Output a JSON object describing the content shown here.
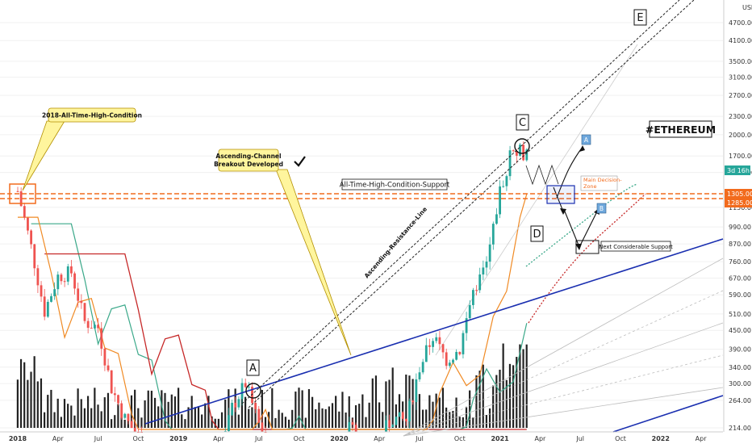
{
  "colors": {
    "accent_orange": "#f26b1d",
    "channel_blue": "#1a2fb0",
    "ema_red": "#c62828",
    "ema_green": "#3aa889",
    "ema_orange": "#f08a24",
    "candle_up": "#26a69a",
    "candle_down": "#ef5350",
    "volume": "#222222",
    "callout_fill": "#fff59d",
    "callout_border": "#b38f00",
    "badge_fill": "#6fa8dc"
  },
  "price_axis": {
    "unit": "USD",
    "ticks": [
      214,
      264,
      300,
      340,
      390,
      450,
      510,
      590,
      670,
      760,
      870,
      990,
      1150,
      1500,
      1700,
      2000,
      2300,
      2700,
      3100,
      3500,
      4100,
      4700
    ],
    "current_price_label": "3d 16h",
    "level_labels": [
      "1305.00",
      "1285.00"
    ]
  },
  "time_axis": {
    "labels": [
      {
        "text": "2018",
        "year": true
      },
      {
        "text": "Apr",
        "year": false
      },
      {
        "text": "Jul",
        "year": false
      },
      {
        "text": "Oct",
        "year": false
      },
      {
        "text": "2019",
        "year": true
      },
      {
        "text": "Apr",
        "year": false
      },
      {
        "text": "Jul",
        "year": false
      },
      {
        "text": "Oct",
        "year": false
      },
      {
        "text": "2020",
        "year": true
      },
      {
        "text": "Apr",
        "year": false
      },
      {
        "text": "Jul",
        "year": false
      },
      {
        "text": "Oct",
        "year": false
      },
      {
        "text": "2021",
        "year": true
      },
      {
        "text": "Apr",
        "year": false
      },
      {
        "text": "Jul",
        "year": false
      },
      {
        "text": "Oct",
        "year": false
      },
      {
        "text": "2022",
        "year": true
      },
      {
        "text": "Apr",
        "year": false
      }
    ]
  },
  "chart_data": {
    "type": "candlestick",
    "ylim": [
      214,
      5000
    ],
    "y_scale": "log",
    "price_path": [
      {
        "x": "2018-01",
        "y": 1300
      },
      {
        "x": "2018-02",
        "y": 850
      },
      {
        "x": "2018-03",
        "y": 520
      },
      {
        "x": "2018-04",
        "y": 680
      },
      {
        "x": "2018-05",
        "y": 700
      },
      {
        "x": "2018-06",
        "y": 480
      },
      {
        "x": "2018-07",
        "y": 460
      },
      {
        "x": "2018-08",
        "y": 290
      },
      {
        "x": "2018-09",
        "y": 230
      },
      {
        "x": "2018-10",
        "y": 200
      },
      {
        "x": "2018-11",
        "y": 120
      },
      {
        "x": "2018-12",
        "y": 130
      },
      {
        "x": "2019-01",
        "y": 110
      },
      {
        "x": "2019-02",
        "y": 135
      },
      {
        "x": "2019-03",
        "y": 140
      },
      {
        "x": "2019-04",
        "y": 165
      },
      {
        "x": "2019-05",
        "y": 250
      },
      {
        "x": "2019-06",
        "y": 300
      },
      {
        "x": "2019-07",
        "y": 220
      },
      {
        "x": "2019-08",
        "y": 180
      },
      {
        "x": "2019-09",
        "y": 175
      },
      {
        "x": "2019-10",
        "y": 180
      },
      {
        "x": "2019-11",
        "y": 150
      },
      {
        "x": "2019-12",
        "y": 130
      },
      {
        "x": "2020-01",
        "y": 180
      },
      {
        "x": "2020-02",
        "y": 230
      },
      {
        "x": "2020-03",
        "y": 130
      },
      {
        "x": "2020-04",
        "y": 200
      },
      {
        "x": "2020-05",
        "y": 230
      },
      {
        "x": "2020-06",
        "y": 225
      },
      {
        "x": "2020-07",
        "y": 340
      },
      {
        "x": "2020-08",
        "y": 430
      },
      {
        "x": "2020-09",
        "y": 360
      },
      {
        "x": "2020-10",
        "y": 390
      },
      {
        "x": "2020-11",
        "y": 610
      },
      {
        "x": "2020-12",
        "y": 740
      },
      {
        "x": "2021-01",
        "y": 1300
      },
      {
        "x": "2021-02",
        "y": 1850
      },
      {
        "x": "2021-03",
        "y": 1700
      }
    ],
    "horizontal_levels": [
      1305,
      1285
    ],
    "annotations": [
      {
        "text": "2018-All-Time-High-Condition",
        "kind": "callout"
      },
      {
        "text": "Ascending-Channel Breakout Developed",
        "kind": "callout",
        "lines": [
          "Ascending-Channel",
          "Breakout Developed"
        ]
      },
      {
        "text": "All-Time-High-Condition-Support",
        "kind": "label"
      },
      {
        "text": "Ascending-Resistance-Line",
        "kind": "label"
      },
      {
        "text": "Main Decision-Zone",
        "kind": "zone",
        "lines": [
          "Main Decision-",
          "Zone"
        ]
      },
      {
        "text": "Next Considerable Support",
        "kind": "label"
      },
      {
        "text": "#ETHEREUM",
        "kind": "title"
      }
    ],
    "wave_labels": [
      "A",
      "C",
      "D",
      "E"
    ],
    "scenario_badges": [
      "A",
      "B"
    ]
  }
}
